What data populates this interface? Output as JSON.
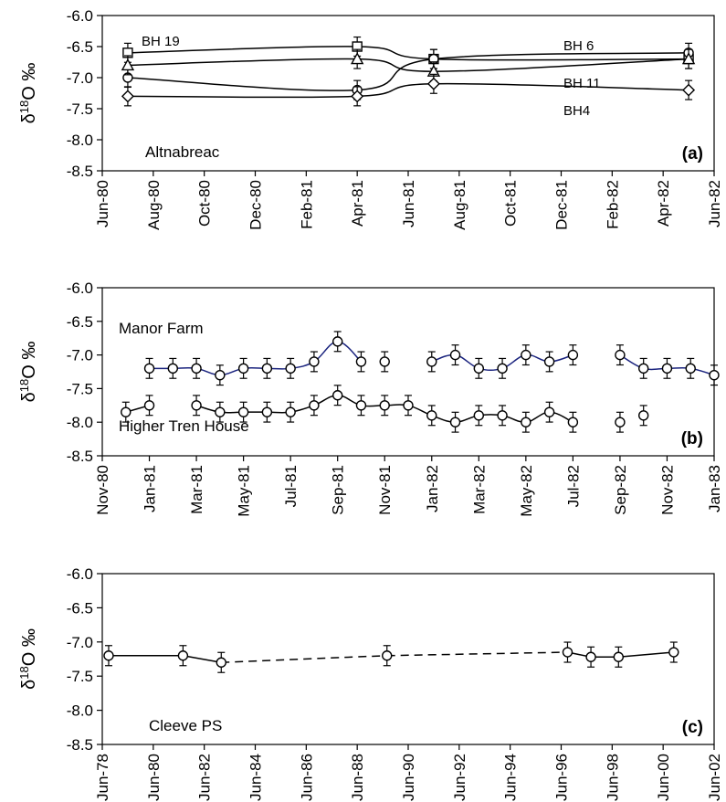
{
  "chart_data": [
    {
      "type": "line",
      "panel_label": "(a)",
      "site_label": "Altnabreac",
      "ylabel": "δ18O ‰",
      "ylim": [
        -8.5,
        -6.0
      ],
      "yticks": [
        -6.0,
        -6.5,
        -7.0,
        -7.5,
        -8.0,
        -8.5
      ],
      "ytick_labels": [
        "-6.0",
        "-6.5",
        "-7.0",
        "-7.5",
        "-8.0",
        "-8.5"
      ],
      "xlim": [
        "1980-06",
        "1982-06"
      ],
      "xticks": [
        "1980-06",
        "1980-08",
        "1980-10",
        "1980-12",
        "1981-02",
        "1981-04",
        "1981-06",
        "1981-08",
        "1981-10",
        "1981-12",
        "1982-02",
        "1982-04",
        "1982-06"
      ],
      "xtick_labels": [
        "Jun-80",
        "Aug-80",
        "Oct-80",
        "Dec-80",
        "Feb-81",
        "Apr-81",
        "Jun-81",
        "Aug-81",
        "Oct-81",
        "Dec-81",
        "Feb-82",
        "Apr-82",
        "Jun-82"
      ],
      "grid": false,
      "series": [
        {
          "name": "BH 19",
          "marker": "square",
          "x": [
            "1980-07",
            "1981-04",
            "1981-07",
            "1982-05"
          ],
          "y": [
            -6.6,
            -6.5,
            -6.7,
            -6.7
          ],
          "error": 0.08,
          "color": "#000000"
        },
        {
          "name": "BH 6",
          "marker": "circle",
          "x": [
            "1980-07",
            "1981-04",
            "1981-07",
            "1982-05"
          ],
          "y": [
            -7.0,
            -7.2,
            -6.7,
            -6.6
          ],
          "error": 0.08,
          "color": "#000000"
        },
        {
          "name": "BH 11",
          "marker": "triangle",
          "x": [
            "1980-07",
            "1981-04",
            "1981-07",
            "1982-05"
          ],
          "y": [
            -6.8,
            -6.7,
            -6.9,
            -6.7
          ],
          "error": 0.08,
          "color": "#000000"
        },
        {
          "name": "BH4",
          "marker": "diamond",
          "x": [
            "1980-07",
            "1981-04",
            "1981-07",
            "1982-05"
          ],
          "y": [
            -7.3,
            -7.3,
            -7.1,
            -7.2
          ],
          "error": 0.08,
          "color": "#000000"
        }
      ]
    },
    {
      "type": "line",
      "panel_label": "(b)",
      "ylabel": "δ18O ‰",
      "ylim": [
        -8.5,
        -6.0
      ],
      "yticks": [
        -6.0,
        -6.5,
        -7.0,
        -7.5,
        -8.0,
        -8.5
      ],
      "ytick_labels": [
        "-6.0",
        "-6.5",
        "-7.0",
        "-7.5",
        "-8.0",
        "-8.5"
      ],
      "xlim": [
        "1980-11",
        "1983-01"
      ],
      "xticks": [
        "1980-11",
        "1981-01",
        "1981-03",
        "1981-05",
        "1981-07",
        "1981-09",
        "1981-11",
        "1982-01",
        "1982-03",
        "1982-05",
        "1982-07",
        "1982-09",
        "1982-11",
        "1983-01"
      ],
      "xtick_labels": [
        "Nov-80",
        "Jan-81",
        "Mar-81",
        "May-81",
        "Jul-81",
        "Sep-81",
        "Nov-81",
        "Jan-82",
        "Mar-82",
        "May-82",
        "Jul-82",
        "Sep-82",
        "Nov-82",
        "Jan-83"
      ],
      "grid": false,
      "series": [
        {
          "name": "Manor Farm",
          "marker": "circle",
          "color": "#1a237e",
          "error": 0.08,
          "segments": [
            {
              "x": [
                "1981-01",
                "1981-02",
                "1981-03",
                "1981-04",
                "1981-05",
                "1981-06",
                "1981-07",
                "1981-08",
                "1981-09",
                "1981-10"
              ],
              "y": [
                -7.2,
                -7.2,
                -7.2,
                -7.3,
                -7.2,
                -7.2,
                -7.2,
                -7.1,
                -6.8,
                -7.1
              ]
            },
            {
              "x": [
                "1981-11"
              ],
              "y": [
                -7.1
              ]
            },
            {
              "x": [
                "1982-01",
                "1982-02",
                "1982-03",
                "1982-04",
                "1982-05",
                "1982-06",
                "1982-07"
              ],
              "y": [
                -7.1,
                -7.0,
                -7.2,
                -7.2,
                -7.0,
                -7.1,
                -7.0
              ]
            },
            {
              "x": [
                "1982-09",
                "1982-10",
                "1982-11",
                "1982-12",
                "1983-01"
              ],
              "y": [
                -7.0,
                -7.2,
                -7.2,
                -7.2,
                -7.3
              ]
            }
          ]
        },
        {
          "name": "Higher Tren House",
          "marker": "circle",
          "color": "#000000",
          "error": 0.08,
          "segments": [
            {
              "x": [
                "1980-12",
                "1981-01"
              ],
              "y": [
                -7.85,
                -7.75
              ]
            },
            {
              "x": [
                "1981-03",
                "1981-04",
                "1981-05",
                "1981-06",
                "1981-07",
                "1981-08",
                "1981-09",
                "1981-10",
                "1981-11",
                "1981-12",
                "1982-01",
                "1982-02",
                "1982-03",
                "1982-04",
                "1982-05",
                "1982-06",
                "1982-07"
              ],
              "y": [
                -7.75,
                -7.85,
                -7.85,
                -7.85,
                -7.85,
                -7.75,
                -7.6,
                -7.75,
                -7.75,
                -7.75,
                -7.9,
                -8.0,
                -7.9,
                -7.9,
                -8.0,
                -7.85,
                -8.0
              ]
            },
            {
              "x": [
                "1982-09"
              ],
              "y": [
                -8.0
              ]
            },
            {
              "x": [
                "1982-10"
              ],
              "y": [
                -7.9
              ]
            }
          ]
        }
      ]
    },
    {
      "type": "line",
      "panel_label": "(c)",
      "site_label": "Cleeve PS",
      "ylabel": "δ18O ‰",
      "ylim": [
        -8.5,
        -6.0
      ],
      "yticks": [
        -6.0,
        -6.5,
        -7.0,
        -7.5,
        -8.0,
        -8.5
      ],
      "ytick_labels": [
        "-6.0",
        "-6.5",
        "-7.0",
        "-7.5",
        "-8.0",
        "-8.5"
      ],
      "xlim": [
        "1978-06",
        "2002-06"
      ],
      "xticks": [
        "1978-06",
        "1980-06",
        "1982-06",
        "1984-06",
        "1986-06",
        "1988-06",
        "1990-06",
        "1992-06",
        "1994-06",
        "1996-06",
        "1998-06",
        "2000-06",
        "2002-06"
      ],
      "xtick_labels": [
        "Jun-78",
        "Jun-80",
        "Jun-82",
        "Jun-84",
        "Jun-86",
        "Jun-88",
        "Jun-90",
        "Jun-92",
        "Jun-94",
        "Jun-96",
        "Jun-98",
        "Jun-00",
        "Jun-02"
      ],
      "grid": false,
      "series": [
        {
          "name": "",
          "marker": "circle",
          "color": "#000000",
          "error": 0.08,
          "x": [
            "1978-09",
            "1981-08",
            "1983-02",
            "1989-08",
            "1996-09",
            "1997-08",
            "1998-09",
            "2000-11"
          ],
          "y": [
            -7.2,
            -7.2,
            -7.3,
            -7.2,
            -7.15,
            -7.22,
            -7.22,
            -7.15
          ],
          "line_styles": [
            "solid",
            "solid",
            "dashed",
            "dashed",
            "solid",
            "solid",
            "solid"
          ]
        }
      ]
    }
  ]
}
